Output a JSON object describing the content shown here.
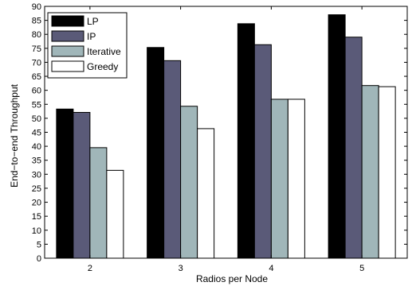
{
  "chart_data": {
    "type": "bar",
    "title": "",
    "xlabel": "Radios per Node",
    "ylabel": "End−to−end Throughput",
    "categories": [
      "2",
      "3",
      "4",
      "5"
    ],
    "ylim": [
      0,
      90
    ],
    "yticks": [
      0,
      5,
      10,
      15,
      20,
      25,
      30,
      35,
      40,
      45,
      50,
      55,
      60,
      65,
      70,
      75,
      80,
      85,
      90
    ],
    "grid": false,
    "legend_position": "top-left",
    "series": [
      {
        "name": "LP",
        "color": "#000000",
        "values": [
          53.3,
          75.3,
          83.8,
          87.0
        ]
      },
      {
        "name": "IP",
        "color": "#5a5a78",
        "values": [
          52.1,
          70.6,
          76.3,
          79.0
        ]
      },
      {
        "name": "Iterative",
        "color": "#a0b6b9",
        "values": [
          39.5,
          54.3,
          56.8,
          61.7
        ]
      },
      {
        "name": "Greedy",
        "color": "#ffffff",
        "values": [
          31.4,
          46.3,
          56.8,
          61.3
        ]
      }
    ]
  }
}
